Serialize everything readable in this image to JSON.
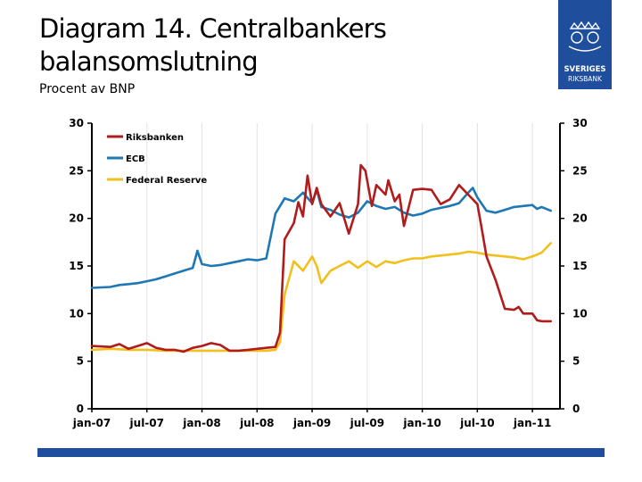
{
  "header": {
    "title": "Diagram 14. Centralbankers balansomslutning",
    "subtitle": "Procent av BNP",
    "logo_text_line1": "SVERIGES",
    "logo_text_line2": "RIKSBANK"
  },
  "colors": {
    "brand": "#1f4e9c",
    "riksbanken": "#b01c1c",
    "ecb": "#1f77b4",
    "fed": "#f2c01e"
  },
  "chart_data": {
    "type": "line",
    "title": "Centralbankers balansomslutning",
    "ylabel": "Procent av BNP",
    "ylim": [
      0,
      30
    ],
    "yticks": [
      0,
      5,
      10,
      15,
      20,
      25,
      30
    ],
    "xlim": [
      0,
      51
    ],
    "xticks": [
      {
        "pos": 0,
        "label": "jan-07"
      },
      {
        "pos": 6,
        "label": "jul-07"
      },
      {
        "pos": 12,
        "label": "jan-08"
      },
      {
        "pos": 18,
        "label": "jul-08"
      },
      {
        "pos": 24,
        "label": "jan-09"
      },
      {
        "pos": 30,
        "label": "jul-09"
      },
      {
        "pos": 36,
        "label": "jan-10"
      },
      {
        "pos": 42,
        "label": "jul-10"
      },
      {
        "pos": 48,
        "label": "jan-11"
      }
    ],
    "legend": "top-left",
    "series": [
      {
        "name": "Riksbanken",
        "color": "#b01c1c",
        "x": [
          0,
          2,
          3,
          4,
          5,
          6,
          7,
          8,
          9,
          10,
          11,
          12,
          13,
          14,
          15,
          16,
          17,
          18,
          19,
          20,
          20.5,
          21,
          22,
          22.5,
          23,
          23.5,
          24,
          24.5,
          25,
          26,
          27,
          28,
          29,
          29.3,
          29.8,
          30.5,
          31,
          32,
          32.3,
          33,
          33.5,
          34,
          35,
          36,
          37,
          38,
          39,
          40,
          41,
          42,
          42.5,
          43,
          44,
          45,
          46,
          46.5,
          47,
          48,
          48.5,
          49,
          50
        ],
        "values": [
          6.6,
          6.5,
          6.8,
          6.3,
          6.6,
          6.9,
          6.4,
          6.2,
          6.2,
          6.0,
          6.4,
          6.6,
          6.9,
          6.7,
          6.1,
          6.1,
          6.2,
          6.3,
          6.4,
          6.5,
          8,
          17.8,
          19.5,
          21.7,
          20.2,
          24.5,
          21.5,
          23.2,
          21.5,
          20.2,
          21.6,
          18.4,
          21.5,
          25.6,
          25.0,
          21.3,
          23.5,
          22.5,
          24.0,
          21.8,
          22.5,
          19.2,
          23.0,
          23.1,
          23.0,
          21.5,
          22.0,
          23.5,
          22.5,
          21.5,
          18.8,
          16.0,
          13.5,
          10.5,
          10.4,
          10.7,
          10.0,
          10.0,
          9.3,
          9.2,
          9.2
        ]
      },
      {
        "name": "ECB",
        "color": "#1f77b4",
        "x": [
          0,
          2,
          3,
          4,
          5,
          6,
          7,
          8,
          9,
          10,
          11,
          11.5,
          12,
          13,
          14,
          15,
          16,
          17,
          18,
          19,
          20,
          21,
          22,
          23,
          24,
          24.5,
          25,
          26,
          27,
          28,
          29,
          30,
          31,
          32,
          33,
          34,
          35,
          36,
          37,
          38,
          39,
          40,
          41,
          41.5,
          42,
          43,
          44,
          45,
          46,
          47,
          48,
          48.5,
          49,
          50
        ],
        "values": [
          12.7,
          12.8,
          13.0,
          13.1,
          13.2,
          13.4,
          13.6,
          13.9,
          14.2,
          14.5,
          14.8,
          16.6,
          15.2,
          15.0,
          15.1,
          15.3,
          15.5,
          15.7,
          15.6,
          15.8,
          20.5,
          22.1,
          21.8,
          22.7,
          21.6,
          23.0,
          21.2,
          20.9,
          20.4,
          20.1,
          20.6,
          21.8,
          21.3,
          21.0,
          21.2,
          20.6,
          20.3,
          20.5,
          20.9,
          21.1,
          21.3,
          21.6,
          22.7,
          23.2,
          22.2,
          20.8,
          20.6,
          20.9,
          21.2,
          21.3,
          21.4,
          21.0,
          21.2,
          20.8
        ]
      },
      {
        "name": "Federal Reserve",
        "color": "#f2c01e",
        "x": [
          0,
          2,
          4,
          6,
          8,
          10,
          12,
          14,
          16,
          18,
          19,
          20,
          20.5,
          21,
          22,
          23,
          24,
          24.5,
          25,
          26,
          27,
          28,
          29,
          30,
          31,
          32,
          33,
          34,
          35,
          36,
          37,
          38,
          39,
          40,
          41,
          42,
          43,
          44,
          45,
          46,
          47,
          48,
          49,
          50
        ],
        "values": [
          6.2,
          6.3,
          6.2,
          6.2,
          6.1,
          6.1,
          6.1,
          6.1,
          6.1,
          6.1,
          6.1,
          6.2,
          7.0,
          12.0,
          15.5,
          14.5,
          16.0,
          15.0,
          13.2,
          14.5,
          15.0,
          15.5,
          14.8,
          15.5,
          14.9,
          15.5,
          15.3,
          15.6,
          15.8,
          15.8,
          16.0,
          16.1,
          16.2,
          16.3,
          16.5,
          16.4,
          16.2,
          16.1,
          16.0,
          15.9,
          15.7,
          16.0,
          16.4,
          17.4
        ]
      }
    ]
  }
}
